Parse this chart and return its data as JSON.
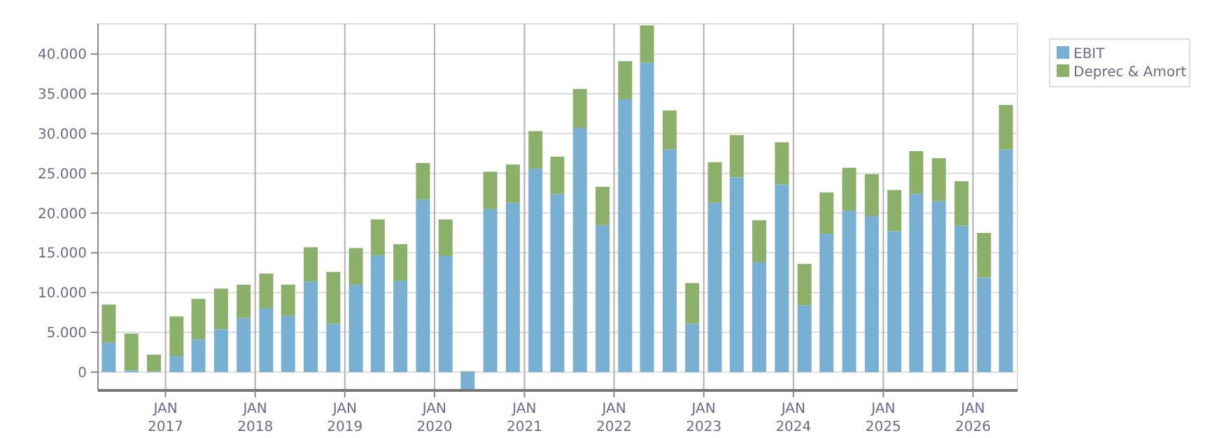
{
  "chart_data": {
    "type": "bar",
    "stacked": true,
    "x": [
      "2016-05-15",
      "2016-08-15",
      "2016-11-15",
      "2017-02-15",
      "2017-05-15",
      "2017-08-15",
      "2017-11-15",
      "2018-02-15",
      "2018-05-15",
      "2018-08-15",
      "2018-11-15",
      "2019-02-15",
      "2019-05-15",
      "2019-08-15",
      "2019-11-15",
      "2020-02-15",
      "2020-05-15",
      "2020-08-15",
      "2020-11-15",
      "2021-02-15",
      "2021-05-15",
      "2021-08-15",
      "2021-11-15",
      "2022-02-15",
      "2022-05-15",
      "2022-08-15",
      "2022-11-15",
      "2023-02-15",
      "2023-05-15",
      "2023-08-15",
      "2023-11-15",
      "2024-02-15",
      "2024-05-15",
      "2024-08-15",
      "2024-11-15",
      "2025-02-15",
      "2025-05-15",
      "2025-08-15",
      "2025-11-15",
      "2026-02-15",
      "2026-05-15"
    ],
    "series": [
      {
        "name": "EBIT",
        "color": "#78b0d3",
        "values": [
          3700,
          200,
          100,
          2000,
          4100,
          5400,
          6800,
          8000,
          7100,
          11400,
          6100,
          11000,
          14700,
          11500,
          21700,
          14600,
          -2200,
          20500,
          21300,
          25600,
          22400,
          30700,
          18500,
          34300,
          38900,
          28000,
          6100,
          21300,
          24500,
          13800,
          23600,
          8400,
          17400,
          20300,
          19600,
          17700,
          22400,
          21500,
          18400,
          11900,
          28000
        ]
      },
      {
        "name": "Deprec & Amort",
        "color": "#8bb06a",
        "values": [
          4800,
          4650,
          2100,
          5000,
          5100,
          5100,
          4200,
          4400,
          3900,
          4300,
          6500,
          4600,
          4500,
          4600,
          4600,
          4600,
          100,
          4700,
          4800,
          4700,
          4700,
          4900,
          4800,
          4800,
          4700,
          4900,
          5100,
          5100,
          5300,
          5300,
          5300,
          5200,
          5200,
          5400,
          5300,
          5200,
          5400,
          5400,
          5600,
          5600,
          5600
        ]
      }
    ],
    "xlim": [
      "2016-04-01",
      "2026-07-01"
    ],
    "xticks": [
      {
        "value": "2017-01-01",
        "label": "JAN 2017"
      },
      {
        "value": "2018-01-01",
        "label": "JAN 2018"
      },
      {
        "value": "2019-01-01",
        "label": "JAN 2019"
      },
      {
        "value": "2020-01-01",
        "label": "JAN 2020"
      },
      {
        "value": "2021-01-01",
        "label": "JAN 2021"
      },
      {
        "value": "2022-01-01",
        "label": "JAN 2022"
      },
      {
        "value": "2023-01-01",
        "label": "JAN 2023"
      },
      {
        "value": "2024-01-01",
        "label": "JAN 2024"
      },
      {
        "value": "2025-01-01",
        "label": "JAN 2025"
      },
      {
        "value": "2026-01-01",
        "label": "JAN 2026"
      }
    ],
    "ylim": [
      -2300,
      43800
    ],
    "yticks": [
      0,
      {
        "value": 5000,
        "label": "5.000"
      },
      {
        "value": 10000,
        "label": "10.000"
      },
      {
        "value": 15000,
        "label": "15.000"
      },
      {
        "value": 20000,
        "label": "20.000"
      },
      {
        "value": 25000,
        "label": "25.000"
      },
      {
        "value": 30000,
        "label": "30.000"
      },
      {
        "value": 35000,
        "label": "35.000"
      },
      {
        "value": 40000,
        "label": "40.000"
      }
    ],
    "grid": true,
    "legend": "top right"
  }
}
